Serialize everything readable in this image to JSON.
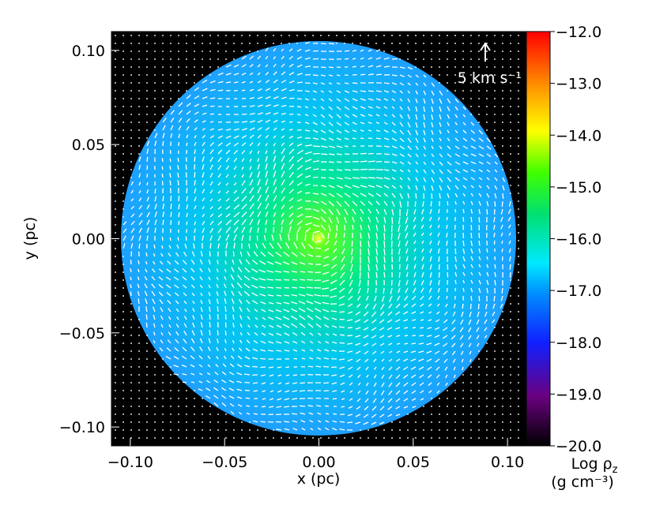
{
  "chart_data": {
    "type": "heatmap",
    "title": "",
    "xlabel": "x (pc)",
    "ylabel": "y (pc)",
    "xlim": [
      -0.11,
      0.11
    ],
    "ylim": [
      -0.11,
      0.11
    ],
    "x_ticks": [
      {
        "value": -0.1,
        "label": "−0.10"
      },
      {
        "value": -0.05,
        "label": "−0.05"
      },
      {
        "value": 0.0,
        "label": "0.00"
      },
      {
        "value": 0.05,
        "label": "0.05"
      },
      {
        "value": 0.1,
        "label": "0.10"
      }
    ],
    "y_ticks": [
      {
        "value": 0.1,
        "label": "0.10"
      },
      {
        "value": 0.05,
        "label": "0.05"
      },
      {
        "value": 0.0,
        "label": "0.00"
      },
      {
        "value": -0.05,
        "label": "−0.05"
      },
      {
        "value": -0.1,
        "label": "−0.10"
      }
    ],
    "colorbar": {
      "label_line1": "Log ρ",
      "label_subscript": "z",
      "label_line2": "(g cm⁻³)",
      "range": [
        -20.0,
        -12.0
      ],
      "ticks": [
        {
          "value": -12.0,
          "label": "−12.0"
        },
        {
          "value": -13.0,
          "label": "−13.0"
        },
        {
          "value": -14.0,
          "label": "−14.0"
        },
        {
          "value": -15.0,
          "label": "−15.0"
        },
        {
          "value": -16.0,
          "label": "−16.0"
        },
        {
          "value": -17.0,
          "label": "−17.0"
        },
        {
          "value": -18.0,
          "label": "−18.0"
        },
        {
          "value": -19.0,
          "label": "−19.0"
        },
        {
          "value": -20.0,
          "label": "−20.0"
        }
      ],
      "colormap": [
        "#000000",
        "#6a0080",
        "#1020ff",
        "#00b4ff",
        "#00e070",
        "#40ff00",
        "#ffff00",
        "#ff9000",
        "#ff0000"
      ]
    },
    "velocity_reference": {
      "magnitude_label": "5 km s⁻¹",
      "value_km_s": 5
    },
    "density_field": {
      "cloud_radius_pc": 0.105,
      "center_pc": [
        0.0,
        0.0
      ],
      "edge_log_rho": -17.3,
      "peak_log_rho": -15.4,
      "core_log_rho": -14.0,
      "background": "#000000"
    },
    "grid": false
  }
}
